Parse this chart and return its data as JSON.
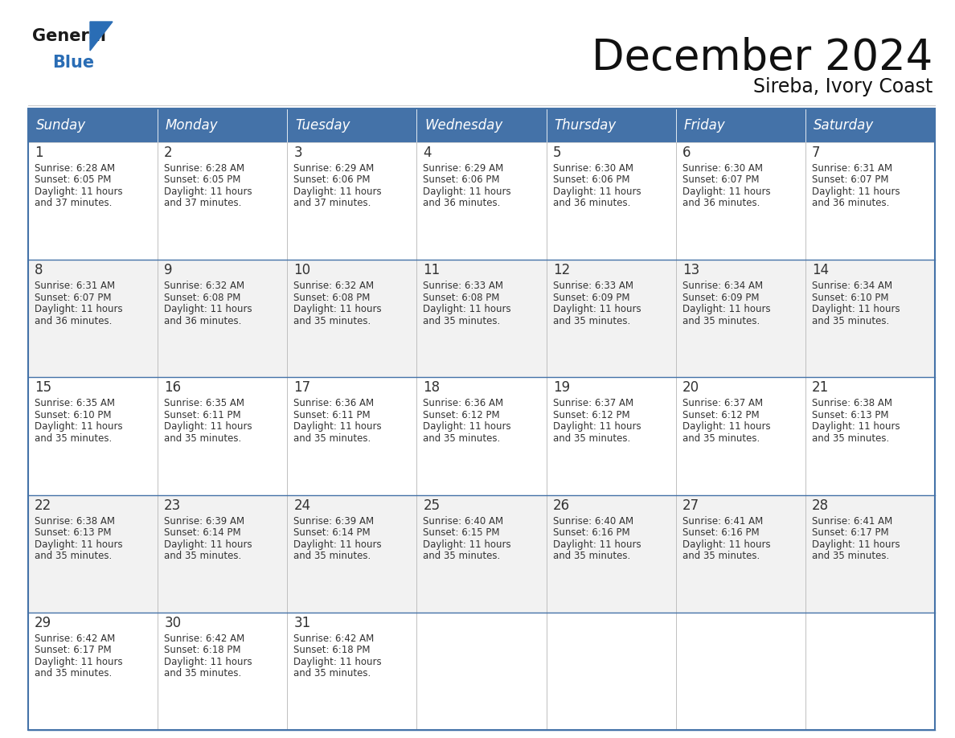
{
  "title": "December 2024",
  "subtitle": "Sireba, Ivory Coast",
  "header_bg_color": "#4472A8",
  "header_text_color": "#FFFFFF",
  "row_bg_even": "#F2F2F2",
  "row_bg_odd": "#FFFFFF",
  "border_color": "#4472A8",
  "grid_color": "#AAAAAA",
  "text_color": "#333333",
  "days_of_week": [
    "Sunday",
    "Monday",
    "Tuesday",
    "Wednesday",
    "Thursday",
    "Friday",
    "Saturday"
  ],
  "weeks": [
    [
      {
        "day": 1,
        "sunrise": "6:28 AM",
        "sunset": "6:05 PM",
        "daylight": "11 hours and 37 minutes."
      },
      {
        "day": 2,
        "sunrise": "6:28 AM",
        "sunset": "6:05 PM",
        "daylight": "11 hours and 37 minutes."
      },
      {
        "day": 3,
        "sunrise": "6:29 AM",
        "sunset": "6:06 PM",
        "daylight": "11 hours and 37 minutes."
      },
      {
        "day": 4,
        "sunrise": "6:29 AM",
        "sunset": "6:06 PM",
        "daylight": "11 hours and 36 minutes."
      },
      {
        "day": 5,
        "sunrise": "6:30 AM",
        "sunset": "6:06 PM",
        "daylight": "11 hours and 36 minutes."
      },
      {
        "day": 6,
        "sunrise": "6:30 AM",
        "sunset": "6:07 PM",
        "daylight": "11 hours and 36 minutes."
      },
      {
        "day": 7,
        "sunrise": "6:31 AM",
        "sunset": "6:07 PM",
        "daylight": "11 hours and 36 minutes."
      }
    ],
    [
      {
        "day": 8,
        "sunrise": "6:31 AM",
        "sunset": "6:07 PM",
        "daylight": "11 hours and 36 minutes."
      },
      {
        "day": 9,
        "sunrise": "6:32 AM",
        "sunset": "6:08 PM",
        "daylight": "11 hours and 36 minutes."
      },
      {
        "day": 10,
        "sunrise": "6:32 AM",
        "sunset": "6:08 PM",
        "daylight": "11 hours and 35 minutes."
      },
      {
        "day": 11,
        "sunrise": "6:33 AM",
        "sunset": "6:08 PM",
        "daylight": "11 hours and 35 minutes."
      },
      {
        "day": 12,
        "sunrise": "6:33 AM",
        "sunset": "6:09 PM",
        "daylight": "11 hours and 35 minutes."
      },
      {
        "day": 13,
        "sunrise": "6:34 AM",
        "sunset": "6:09 PM",
        "daylight": "11 hours and 35 minutes."
      },
      {
        "day": 14,
        "sunrise": "6:34 AM",
        "sunset": "6:10 PM",
        "daylight": "11 hours and 35 minutes."
      }
    ],
    [
      {
        "day": 15,
        "sunrise": "6:35 AM",
        "sunset": "6:10 PM",
        "daylight": "11 hours and 35 minutes."
      },
      {
        "day": 16,
        "sunrise": "6:35 AM",
        "sunset": "6:11 PM",
        "daylight": "11 hours and 35 minutes."
      },
      {
        "day": 17,
        "sunrise": "6:36 AM",
        "sunset": "6:11 PM",
        "daylight": "11 hours and 35 minutes."
      },
      {
        "day": 18,
        "sunrise": "6:36 AM",
        "sunset": "6:12 PM",
        "daylight": "11 hours and 35 minutes."
      },
      {
        "day": 19,
        "sunrise": "6:37 AM",
        "sunset": "6:12 PM",
        "daylight": "11 hours and 35 minutes."
      },
      {
        "day": 20,
        "sunrise": "6:37 AM",
        "sunset": "6:12 PM",
        "daylight": "11 hours and 35 minutes."
      },
      {
        "day": 21,
        "sunrise": "6:38 AM",
        "sunset": "6:13 PM",
        "daylight": "11 hours and 35 minutes."
      }
    ],
    [
      {
        "day": 22,
        "sunrise": "6:38 AM",
        "sunset": "6:13 PM",
        "daylight": "11 hours and 35 minutes."
      },
      {
        "day": 23,
        "sunrise": "6:39 AM",
        "sunset": "6:14 PM",
        "daylight": "11 hours and 35 minutes."
      },
      {
        "day": 24,
        "sunrise": "6:39 AM",
        "sunset": "6:14 PM",
        "daylight": "11 hours and 35 minutes."
      },
      {
        "day": 25,
        "sunrise": "6:40 AM",
        "sunset": "6:15 PM",
        "daylight": "11 hours and 35 minutes."
      },
      {
        "day": 26,
        "sunrise": "6:40 AM",
        "sunset": "6:16 PM",
        "daylight": "11 hours and 35 minutes."
      },
      {
        "day": 27,
        "sunrise": "6:41 AM",
        "sunset": "6:16 PM",
        "daylight": "11 hours and 35 minutes."
      },
      {
        "day": 28,
        "sunrise": "6:41 AM",
        "sunset": "6:17 PM",
        "daylight": "11 hours and 35 minutes."
      }
    ],
    [
      {
        "day": 29,
        "sunrise": "6:42 AM",
        "sunset": "6:17 PM",
        "daylight": "11 hours and 35 minutes."
      },
      {
        "day": 30,
        "sunrise": "6:42 AM",
        "sunset": "6:18 PM",
        "daylight": "11 hours and 35 minutes."
      },
      {
        "day": 31,
        "sunrise": "6:42 AM",
        "sunset": "6:18 PM",
        "daylight": "11 hours and 35 minutes."
      },
      null,
      null,
      null,
      null
    ]
  ],
  "logo_general_color": "#1a1a1a",
  "logo_blue_color": "#2A6DB5",
  "title_fontsize": 38,
  "subtitle_fontsize": 17,
  "header_fontsize": 12,
  "day_number_fontsize": 12,
  "cell_text_fontsize": 8.5
}
